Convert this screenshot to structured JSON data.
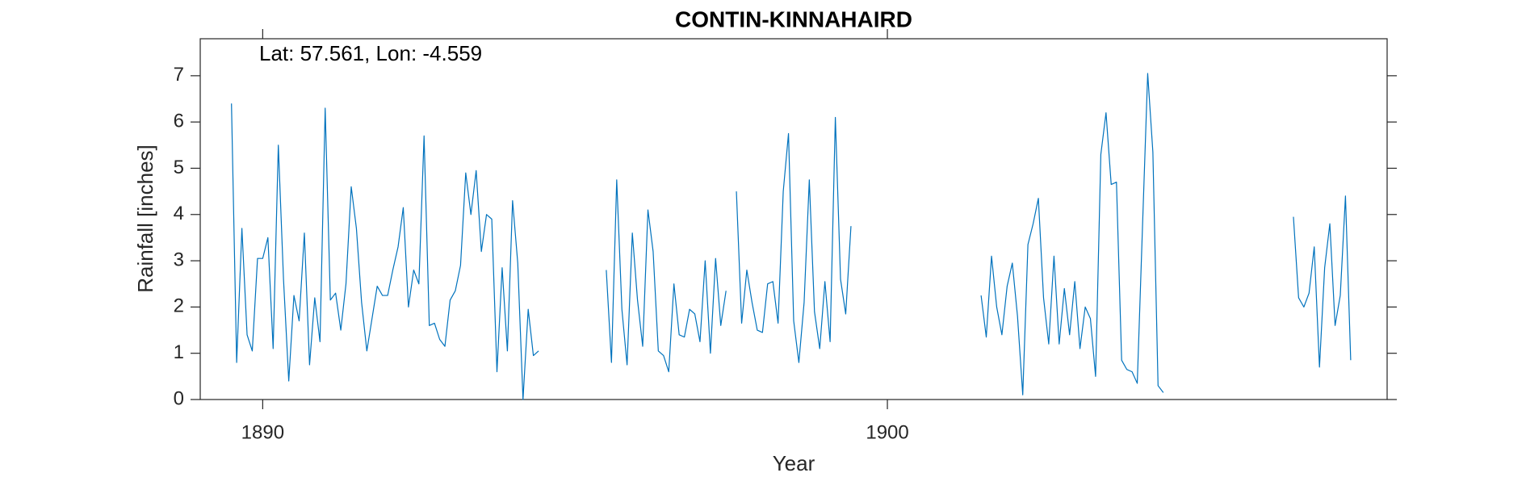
{
  "chart_data": {
    "type": "line",
    "title": "CONTIN-KINNAHAIRD",
    "annotation": "Lat: 57.561, Lon: -4.559",
    "xlabel": "Year",
    "ylabel": "Rainfall [inches]",
    "xlim": [
      1889,
      1908
    ],
    "xticks": [
      1890,
      1900
    ],
    "ylim": [
      0,
      7.8
    ],
    "yticks": [
      0,
      1,
      2,
      3,
      4,
      5,
      6,
      7
    ],
    "grid": false,
    "x": [
      1889.5,
      1889.583,
      1889.667,
      1889.75,
      1889.833,
      1889.917,
      1890,
      1890.083,
      1890.167,
      1890.25,
      1890.333,
      1890.417,
      1890.5,
      1890.583,
      1890.667,
      1890.75,
      1890.833,
      1890.917,
      1891,
      1891.083,
      1891.167,
      1891.25,
      1891.333,
      1891.417,
      1891.5,
      1891.583,
      1891.667,
      1891.75,
      1891.833,
      1891.917,
      1892,
      1892.083,
      1892.167,
      1892.25,
      1892.333,
      1892.417,
      1892.5,
      1892.583,
      1892.667,
      1892.75,
      1892.833,
      1892.917,
      1893,
      1893.083,
      1893.167,
      1893.25,
      1893.333,
      1893.417,
      1893.5,
      1893.583,
      1893.667,
      1893.75,
      1893.833,
      1893.917,
      1894,
      1894.083,
      1894.167,
      1894.25,
      1894.333,
      1894.417,
      1895,
      1895.5,
      1895.583,
      1895.667,
      1895.75,
      1895.833,
      1895.917,
      1896,
      1896.083,
      1896.167,
      1896.25,
      1896.333,
      1896.417,
      1896.5,
      1896.583,
      1896.667,
      1896.75,
      1896.833,
      1896.917,
      1897,
      1897.083,
      1897.167,
      1897.25,
      1897.333,
      1897.417,
      1897.5,
      1897.583,
      1897.667,
      1897.75,
      1897.833,
      1897.917,
      1898,
      1898.083,
      1898.167,
      1898.25,
      1898.333,
      1898.417,
      1898.5,
      1898.583,
      1898.667,
      1898.75,
      1898.833,
      1898.917,
      1899,
      1899.083,
      1899.167,
      1899.25,
      1899.333,
      1899.417,
      1901,
      1901.5,
      1901.583,
      1901.667,
      1901.75,
      1901.833,
      1901.917,
      1902,
      1902.083,
      1902.167,
      1902.25,
      1902.333,
      1902.417,
      1902.5,
      1902.583,
      1902.667,
      1902.75,
      1902.833,
      1902.917,
      1903,
      1903.083,
      1903.167,
      1903.25,
      1903.333,
      1903.417,
      1903.5,
      1903.583,
      1903.667,
      1903.75,
      1903.833,
      1903.917,
      1904,
      1904.083,
      1904.167,
      1904.25,
      1904.333,
      1904.417,
      1905.5,
      1906.5,
      1906.583,
      1906.667,
      1906.75,
      1906.833,
      1906.917,
      1907,
      1907.083,
      1907.167,
      1907.25,
      1907.333,
      1907.417
    ],
    "series": [
      {
        "color": "#0072bd",
        "values": [
          6.4,
          0.8,
          3.7,
          1.4,
          1.05,
          3.05,
          3.05,
          3.5,
          1.1,
          5.5,
          2.6,
          0.4,
          2.25,
          1.7,
          3.6,
          0.75,
          2.2,
          1.25,
          6.3,
          2.15,
          2.3,
          1.5,
          2.5,
          4.6,
          3.7,
          2.1,
          1.05,
          1.75,
          2.45,
          2.25,
          2.25,
          2.8,
          3.3,
          4.15,
          2.0,
          2.8,
          2.5,
          5.7,
          1.6,
          1.65,
          1.3,
          1.15,
          2.15,
          2.35,
          2.9,
          4.9,
          4.0,
          4.95,
          3.2,
          4.0,
          3.9,
          0.6,
          2.85,
          1.05,
          4.3,
          2.95,
          0,
          1.95,
          0.95,
          1.05,
          null,
          2.8,
          0.8,
          4.75,
          1.95,
          0.75,
          3.6,
          2.15,
          1.15,
          4.1,
          3.2,
          1.05,
          0.95,
          0.6,
          2.5,
          1.4,
          1.35,
          1.95,
          1.85,
          1.25,
          3.0,
          1.0,
          3.05,
          1.6,
          2.35,
          null,
          4.5,
          1.65,
          2.8,
          2.1,
          1.5,
          1.45,
          2.5,
          2.55,
          1.65,
          4.5,
          5.75,
          1.7,
          0.8,
          2.1,
          4.75,
          1.9,
          1.1,
          2.55,
          1.25,
          6.1,
          2.6,
          1.85,
          3.75,
          null,
          2.25,
          1.35,
          3.1,
          2.0,
          1.4,
          2.45,
          2.95,
          1.8,
          0.1,
          3.35,
          3.8,
          4.35,
          2.2,
          1.2,
          3.1,
          1.2,
          2.4,
          1.4,
          2.55,
          1.1,
          2.0,
          1.75,
          0.5,
          5.3,
          6.2,
          4.65,
          4.7,
          0.85,
          0.65,
          0.6,
          0.35,
          3.7,
          7.05,
          5.35,
          0.3,
          0.15,
          null,
          3.95,
          2.2,
          2.0,
          2.3,
          3.3,
          0.7,
          2.85,
          3.8,
          1.6,
          2.25,
          4.4,
          0.85
        ]
      }
    ]
  }
}
